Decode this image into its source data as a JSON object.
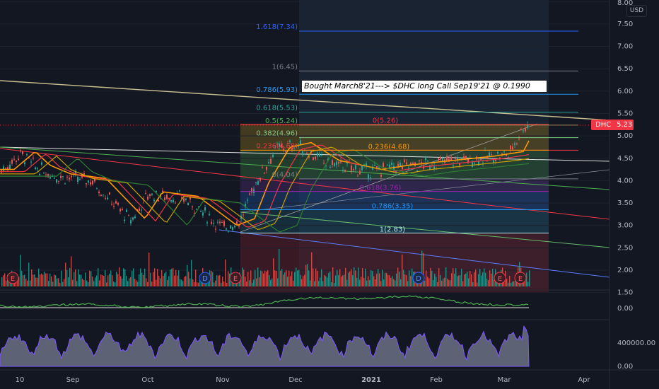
{
  "chart_data": {
    "type": "candlestick",
    "ticker": "DHC",
    "currency": "USD",
    "last_price": "5.23",
    "annotation": "Bought March8'21---> $DHC long Call Sep19'21 @ 0.1990",
    "x_ticks": [
      "10",
      "Sep",
      "Oct",
      "Nov",
      "Dec",
      "2021",
      "Feb",
      "Mar",
      "Apr"
    ],
    "y_ticks": [
      "1.50",
      "2.00",
      "2.50",
      "3.00",
      "3.50",
      "4.00",
      "4.50",
      "5.00",
      "5.50",
      "6.00",
      "6.50",
      "7.00",
      "7.50",
      "8.00"
    ],
    "ylim": [
      1.5,
      8.0
    ],
    "fib_upper": [
      {
        "label": "1.618(7.34)",
        "value": 7.34,
        "color": "#2962ff"
      },
      {
        "label": "1(6.45)",
        "value": 6.45,
        "color": "#787b86"
      },
      {
        "label": "0.786(5.93)",
        "value": 5.93,
        "color": "#2196f3"
      },
      {
        "label": "0.618(5.53)",
        "value": 5.53,
        "color": "#26a69a"
      },
      {
        "label": "0.5(5.24)",
        "value": 5.24,
        "color": "#4caf50"
      },
      {
        "label": "0.382(4.96)",
        "value": 4.96,
        "color": "#81c784"
      },
      {
        "label": "0.236(4.68)",
        "value": 4.68,
        "color": "#f23645"
      },
      {
        "label": "0(4.04)",
        "value": 4.04,
        "color": "#787b86"
      }
    ],
    "fib_lower": [
      {
        "label": "0(5.26)",
        "value": 5.26,
        "color": "#f23645"
      },
      {
        "label": "0.236(4.68)",
        "value": 4.68,
        "color": "#ff9800"
      },
      {
        "label": "0.618(3.76)",
        "value": 3.76,
        "color": "#9c27b0"
      },
      {
        "label": "0.786(3.35)",
        "value": 3.35,
        "color": "#2196f3"
      },
      {
        "label": "1(2.83)",
        "value": 2.83,
        "color": "#b2ebf2"
      }
    ],
    "earnings_markers": [
      "E",
      "E",
      "E",
      "E"
    ],
    "dividend_markers": [
      "D",
      "D"
    ],
    "sub1_ticks": [
      "0.00"
    ],
    "sub2_ticks": [
      "400000.00",
      "0.00"
    ]
  }
}
